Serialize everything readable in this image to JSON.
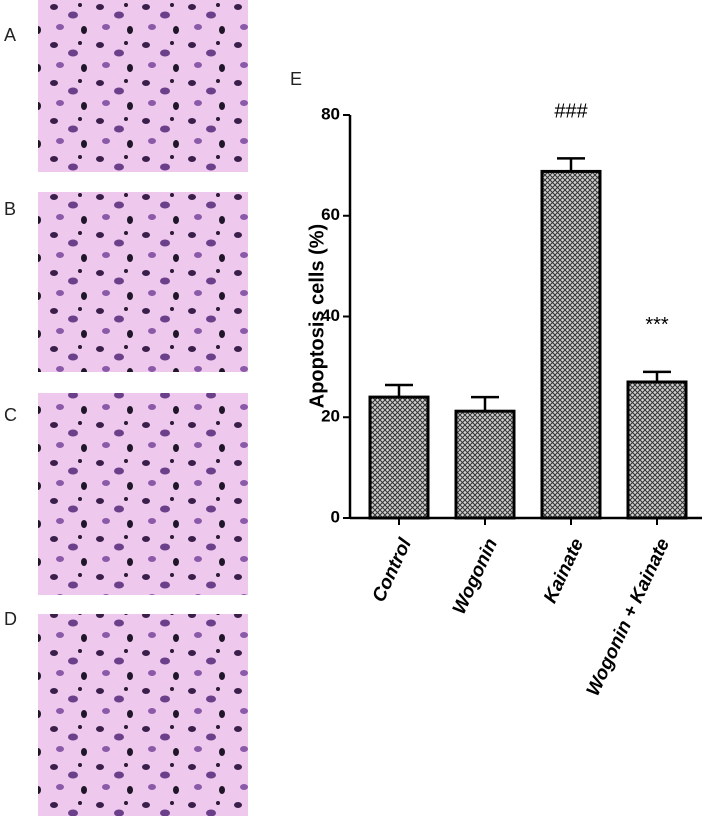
{
  "panels": {
    "labels": [
      "A",
      "B",
      "C",
      "D"
    ]
  },
  "chart_data": {
    "type": "bar",
    "panel_label": "E",
    "ylabel": "Apoptosis cells (%)",
    "categories": [
      "Control",
      "Wogonin",
      "Kainate",
      "Wogonin + Kainate"
    ],
    "values": [
      24,
      21.2,
      68.8,
      27
    ],
    "errors": [
      2.4,
      2.8,
      2.6,
      2
    ],
    "annotations": [
      null,
      null,
      "###",
      "***"
    ],
    "color": "#555555",
    "ylim": [
      0,
      80
    ],
    "yticks": [
      0,
      20,
      40,
      60,
      80
    ],
    "grid": false
  }
}
